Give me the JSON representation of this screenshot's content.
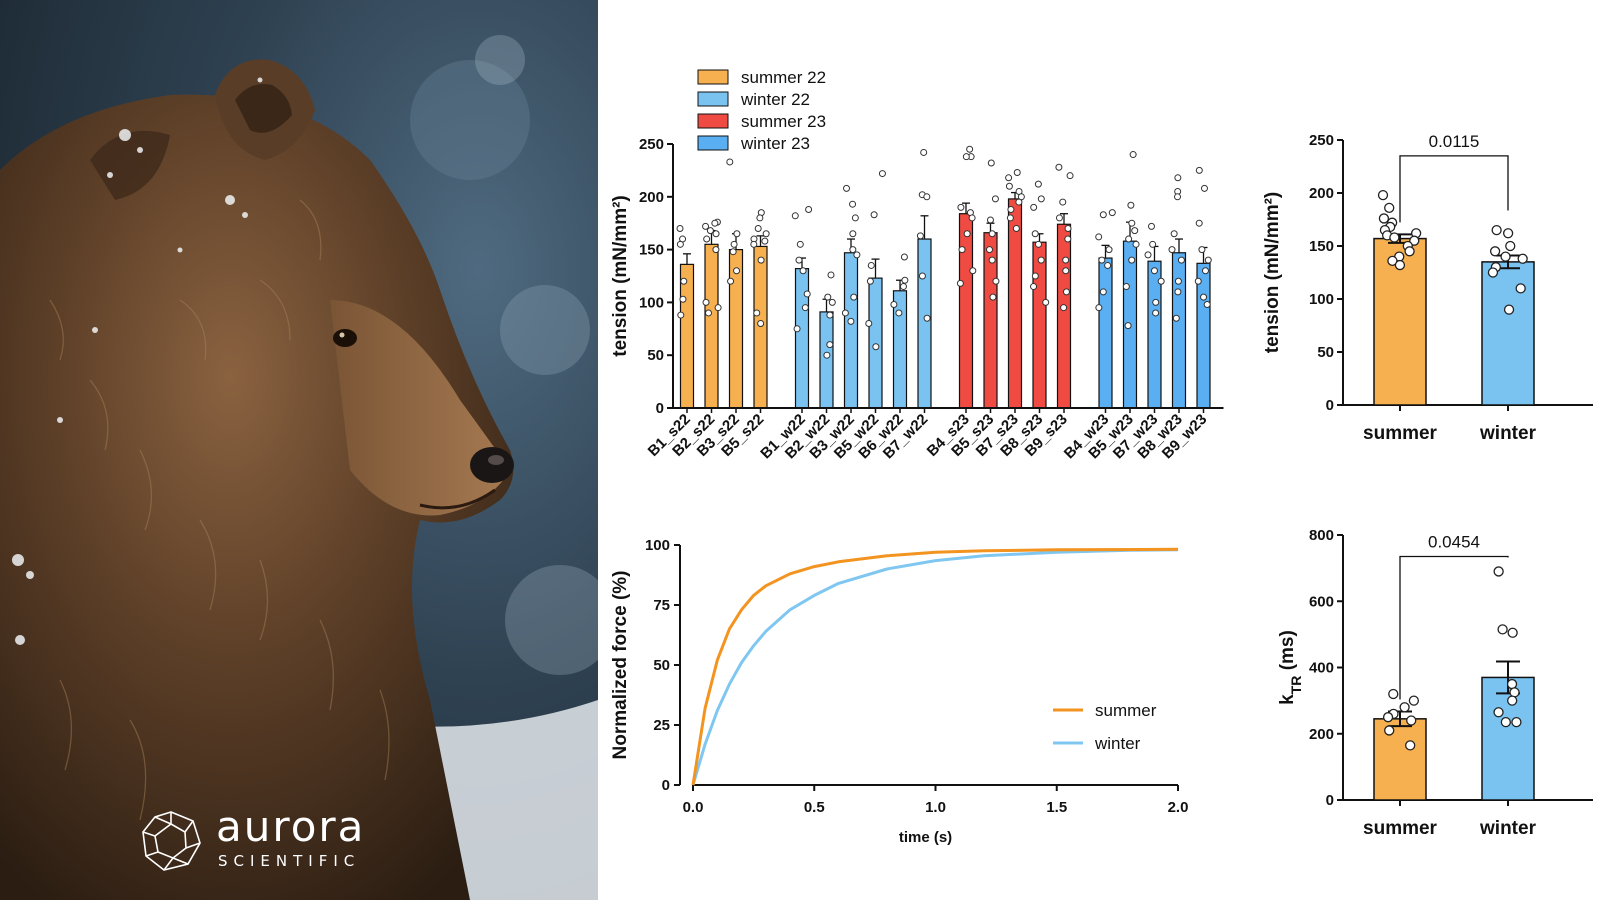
{
  "logo": {
    "brand": "aurora",
    "tagline": "SCIENTIFIC"
  },
  "colors": {
    "summer22": "#f7b04f",
    "winter22": "#7ac3f1",
    "summer23": "#ef4b42",
    "winter23": "#5aaef2",
    "summer_line": "#f39320",
    "winter_line": "#7fc7f0"
  },
  "chart_data": [
    {
      "type": "bar",
      "id": "per-animal-tension",
      "ylabel": "tension (mN/mm²)",
      "ylim": [
        0,
        250
      ],
      "yticks": [
        0,
        50,
        100,
        150,
        200,
        250
      ],
      "legend": {
        "placement": "top-left",
        "entries": [
          "summer 22",
          "winter 22",
          "summer 23",
          "winter 23"
        ]
      },
      "series": [
        {
          "name": "summer 22",
          "categories": [
            "B1_s22",
            "B2_s22",
            "B3_s22",
            "B5_s22"
          ],
          "values": [
            136,
            155,
            150,
            153
          ],
          "sem": [
            10,
            13,
            15,
            10
          ],
          "points": [
            [
              170,
              160,
              155,
              120,
              103,
              88
            ],
            [
              176,
              175,
              172,
              168,
              165,
              160,
              150,
              100,
              95,
              90
            ],
            [
              233,
              165,
              155,
              148,
              130,
              120
            ],
            [
              185,
              180,
              170,
              165,
              160,
              158,
              155,
              140,
              90,
              80
            ]
          ]
        },
        {
          "name": "winter 22",
          "categories": [
            "B1_w22",
            "B2_w22",
            "B3_w22",
            "B5_w22",
            "B6_w22",
            "B7_w22"
          ],
          "values": [
            132,
            91,
            147,
            123,
            111,
            160
          ],
          "sem": [
            10,
            12,
            13,
            18,
            10,
            22
          ],
          "points": [
            [
              188,
              182,
              155,
              140,
              130,
              108,
              95,
              75
            ],
            [
              126,
              105,
              100,
              88,
              60,
              50
            ],
            [
              208,
              193,
              180,
              165,
              150,
              145,
              105,
              90,
              82
            ],
            [
              222,
              183,
              135,
              120,
              80,
              58
            ],
            [
              143,
              121,
              115,
              98,
              90
            ],
            [
              242,
              202,
              200,
              163,
              125,
              85
            ]
          ]
        },
        {
          "name": "summer 23",
          "categories": [
            "B4_s23",
            "B5_s23",
            "B7_s23",
            "B8_s23",
            "B9_s23"
          ],
          "values": [
            184,
            166,
            198,
            157,
            174
          ],
          "sem": [
            10,
            9,
            6,
            8,
            10
          ],
          "points": [
            [
              245,
              238,
              238,
              190,
              185,
              180,
              165,
              150,
              130,
              118
            ],
            [
              232,
              198,
              178,
              165,
              150,
              140,
              120,
              105
            ],
            [
              223,
              218,
              210,
              205,
              200,
              195,
              188,
              180,
              170
            ],
            [
              212,
              198,
              190,
              165,
              155,
              140,
              125,
              115,
              100
            ],
            [
              228,
              220,
              195,
              180,
              170,
              160,
              140,
              130,
              110,
              95
            ]
          ]
        },
        {
          "name": "winter 23",
          "categories": [
            "B4_w23",
            "B5_w23",
            "B7_w23",
            "B8_w23",
            "B9_w23"
          ],
          "values": [
            142,
            158,
            139,
            147,
            137
          ],
          "sem": [
            12,
            18,
            14,
            13,
            15
          ],
          "points": [
            [
              185,
              183,
              162,
              150,
              140,
              135,
              110,
              95
            ],
            [
              240,
              192,
              175,
              168,
              160,
              155,
              140,
              115,
              78
            ],
            [
              172,
              155,
              145,
              130,
              120,
              100,
              90
            ],
            [
              218,
              205,
              200,
              165,
              150,
              140,
              120,
              110,
              85
            ],
            [
              225,
              208,
              175,
              150,
              140,
              130,
              120,
              105,
              98
            ]
          ]
        }
      ]
    },
    {
      "type": "bar",
      "id": "season-tension",
      "ylabel": "tension (mN/mm²)",
      "ylim": [
        0,
        250
      ],
      "yticks": [
        0,
        50,
        100,
        150,
        200,
        250
      ],
      "categories": [
        "summer",
        "winter"
      ],
      "values": [
        157,
        135
      ],
      "sem": [
        4,
        6
      ],
      "points": [
        [
          198,
          186,
          176,
          172,
          168,
          165,
          162,
          160,
          158,
          155,
          150,
          145,
          140,
          136,
          132
        ],
        [
          165,
          162,
          150,
          145,
          140,
          138,
          130,
          125,
          110,
          90
        ]
      ],
      "annotation": {
        "text": "0.0115",
        "between": [
          "summer",
          "winter"
        ],
        "y": 235
      }
    },
    {
      "type": "line",
      "id": "force-redevelopment",
      "xlabel": "time (s)",
      "ylabel": "Normalized force (%)",
      "xlim": [
        0,
        2.0
      ],
      "ylim": [
        0,
        100
      ],
      "xticks": [
        0.0,
        0.5,
        1.0,
        1.5,
        2.0
      ],
      "yticks": [
        0,
        25,
        50,
        75,
        100
      ],
      "legend": {
        "placement": "bottom-right"
      },
      "series": [
        {
          "name": "summer",
          "x": [
            0,
            0.05,
            0.1,
            0.15,
            0.2,
            0.25,
            0.3,
            0.4,
            0.5,
            0.6,
            0.8,
            1.0,
            1.2,
            1.5,
            2.0
          ],
          "y": [
            0,
            32,
            52,
            65,
            73,
            79,
            83,
            88,
            91,
            93,
            95.5,
            97,
            97.6,
            98,
            98.2
          ]
        },
        {
          "name": "winter",
          "x": [
            0,
            0.05,
            0.1,
            0.15,
            0.2,
            0.25,
            0.3,
            0.4,
            0.5,
            0.6,
            0.8,
            1.0,
            1.2,
            1.5,
            1.8,
            2.0
          ],
          "y": [
            0,
            17,
            31,
            42,
            51,
            58,
            64,
            73,
            79,
            84,
            90,
            93.5,
            95.5,
            97,
            97.8,
            98
          ]
        }
      ]
    },
    {
      "type": "bar",
      "id": "season-ktr",
      "ylabel_main": "k",
      "ylabel_sub": "TR",
      "ylabel_unit": " (ms)",
      "ylim": [
        0,
        800
      ],
      "yticks": [
        0,
        200,
        400,
        600,
        800
      ],
      "categories": [
        "summer",
        "winter"
      ],
      "values": [
        245,
        370
      ],
      "sem": [
        22,
        48
      ],
      "points": [
        [
          320,
          300,
          280,
          260,
          250,
          240,
          210,
          165
        ],
        [
          690,
          515,
          505,
          350,
          325,
          300,
          265,
          235,
          235
        ]
      ],
      "annotation": {
        "text": "0.0454",
        "between": [
          "summer",
          "winter"
        ],
        "y": 735
      }
    }
  ]
}
